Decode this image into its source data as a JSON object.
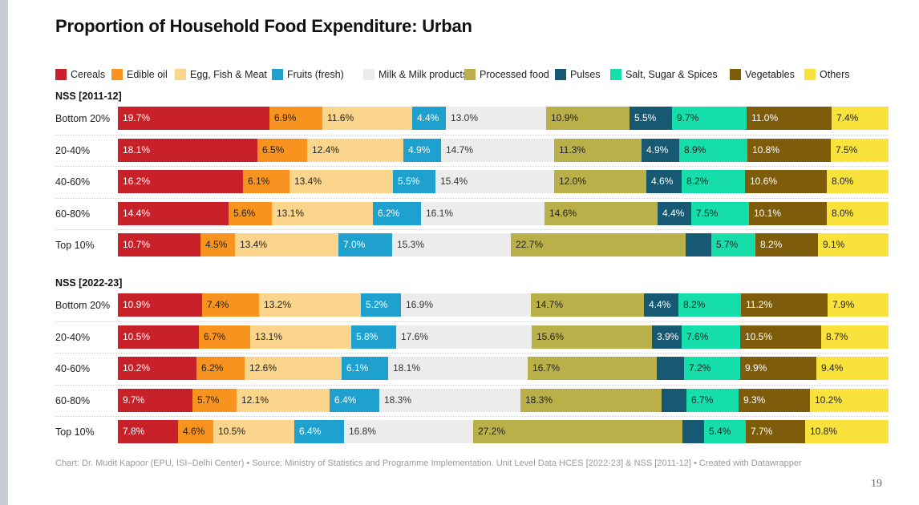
{
  "title": "Proportion of Household Food Expenditure: Urban",
  "footer": "Chart: Dr. Mudit Kapoor (EPU, ISI–Delhi Center) • Source: Ministry of Statistics and Programme Implementation. Unit Level Data HCES [2022-23] & NSS [2011-12] • Created with Datawrapper",
  "page_number": "19",
  "chart_data": {
    "type": "bar",
    "orientation": "horizontal",
    "stacked": true,
    "title": "Proportion of Household Food Expenditure: Urban",
    "legend_position": "top",
    "series": [
      {
        "name": "Cereals",
        "color": "#c8212a"
      },
      {
        "name": "Edible oil",
        "color": "#f7931e"
      },
      {
        "name": "Egg, Fish & Meat",
        "color": "#fcd58c"
      },
      {
        "name": "Fruits (fresh)",
        "color": "#1ea1cf"
      },
      {
        "name": "Milk & Milk products",
        "color": "#ececec"
      },
      {
        "name": "Processed food",
        "color": "#b9b049"
      },
      {
        "name": "Pulses",
        "color": "#175872"
      },
      {
        "name": "Salt, Sugar & Spices",
        "color": "#16deaa"
      },
      {
        "name": "Vegetables",
        "color": "#7d5c0c"
      },
      {
        "name": "Others",
        "color": "#f9e23c"
      }
    ],
    "groups": [
      {
        "name": "NSS [2011-12]",
        "rows": [
          {
            "label": "Bottom 20%",
            "values": [
              19.7,
              6.9,
              11.6,
              4.4,
              13.0,
              10.9,
              5.5,
              9.7,
              11.0,
              7.4
            ],
            "shown": [
              true,
              true,
              true,
              true,
              true,
              true,
              true,
              true,
              true,
              true
            ]
          },
          {
            "label": "20-40%",
            "values": [
              18.1,
              6.5,
              12.4,
              4.9,
              14.7,
              11.3,
              4.9,
              8.9,
              10.8,
              7.5
            ],
            "shown": [
              true,
              true,
              true,
              true,
              true,
              true,
              true,
              true,
              true,
              true
            ]
          },
          {
            "label": "40-60%",
            "values": [
              16.2,
              6.1,
              13.4,
              5.5,
              15.4,
              12.0,
              4.6,
              8.2,
              10.6,
              8.0
            ],
            "shown": [
              true,
              true,
              true,
              true,
              true,
              true,
              true,
              true,
              true,
              true
            ]
          },
          {
            "label": "60-80%",
            "values": [
              14.4,
              5.6,
              13.1,
              6.2,
              16.1,
              14.6,
              4.4,
              7.5,
              10.1,
              8.0
            ],
            "shown": [
              true,
              true,
              true,
              true,
              true,
              true,
              true,
              true,
              true,
              true
            ]
          },
          {
            "label": "Top 10%",
            "values": [
              10.7,
              4.5,
              13.4,
              7.0,
              15.3,
              22.7,
              3.3,
              5.7,
              8.2,
              9.1
            ],
            "shown": [
              true,
              true,
              true,
              true,
              true,
              true,
              false,
              true,
              true,
              true
            ]
          }
        ]
      },
      {
        "name": "NSS [2022-23]",
        "rows": [
          {
            "label": "Bottom 20%",
            "values": [
              10.9,
              7.4,
              13.2,
              5.2,
              16.9,
              14.7,
              4.4,
              8.2,
              11.2,
              7.9
            ],
            "shown": [
              true,
              true,
              true,
              true,
              true,
              true,
              true,
              true,
              true,
              true
            ]
          },
          {
            "label": "20-40%",
            "values": [
              10.5,
              6.7,
              13.1,
              5.8,
              17.6,
              15.6,
              3.9,
              7.6,
              10.5,
              8.7
            ],
            "shown": [
              true,
              true,
              true,
              true,
              true,
              true,
              true,
              true,
              true,
              true
            ]
          },
          {
            "label": "40-60%",
            "values": [
              10.2,
              6.2,
              12.6,
              6.1,
              18.1,
              16.7,
              3.6,
              7.2,
              9.9,
              9.4
            ],
            "shown": [
              true,
              true,
              true,
              true,
              true,
              true,
              false,
              true,
              true,
              true
            ]
          },
          {
            "label": "60-80%",
            "values": [
              9.7,
              5.7,
              12.1,
              6.4,
              18.3,
              18.3,
              3.3,
              6.7,
              9.3,
              10.2
            ],
            "shown": [
              true,
              true,
              true,
              true,
              true,
              true,
              false,
              true,
              true,
              true
            ]
          },
          {
            "label": "Top 10%",
            "values": [
              7.8,
              4.6,
              10.5,
              6.4,
              16.8,
              27.2,
              2.8,
              5.4,
              7.7,
              10.8
            ],
            "shown": [
              true,
              true,
              true,
              true,
              true,
              true,
              false,
              true,
              true,
              true
            ]
          }
        ]
      }
    ],
    "value_format": "%",
    "xlim": [
      0,
      100
    ]
  }
}
